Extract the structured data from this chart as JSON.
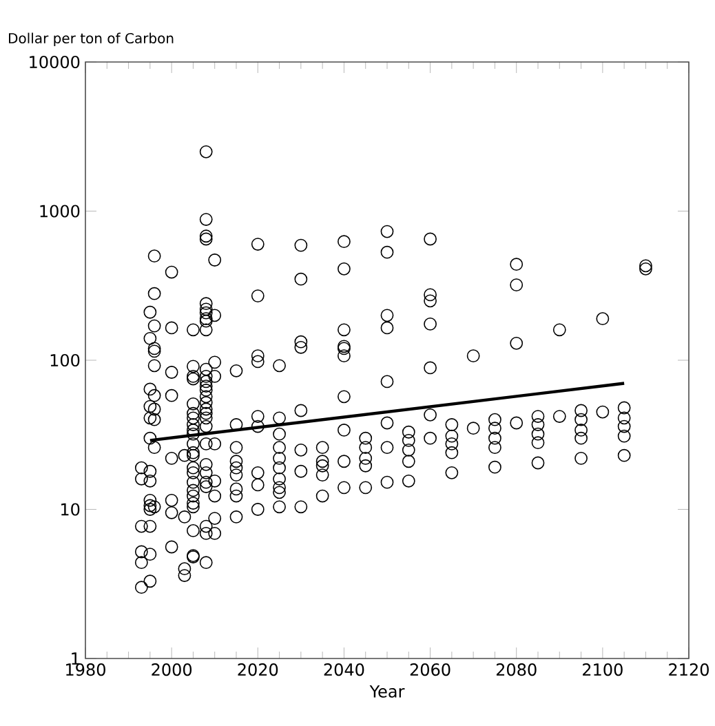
{
  "chart_data": {
    "type": "scatter",
    "xlabel": "Year",
    "ylabel": "Dollar per ton of Carbon",
    "log": "y",
    "xlim": [
      1980,
      2120
    ],
    "ylim": [
      1,
      10000
    ],
    "xticks": [
      1980,
      2000,
      2020,
      2040,
      2060,
      2080,
      2100,
      2120
    ],
    "yticks": [
      1,
      10,
      100,
      1000,
      10000
    ],
    "series": [
      {
        "color": "#000000",
        "marker": "circle",
        "x": [
          1993,
          1993,
          1993,
          1993,
          1993,
          1993,
          1995,
          1995,
          1995,
          1995,
          1995,
          1995,
          1995,
          1995,
          1995,
          1995,
          1995,
          1995,
          1995,
          1995,
          1996,
          1996,
          1996,
          1996,
          1996,
          1996,
          1996,
          1996,
          1996,
          1996,
          1996,
          2000,
          2000,
          2000,
          2000,
          2000,
          2000,
          2000,
          2000,
          2003,
          2003,
          2003,
          2003,
          2005,
          2005,
          2005,
          2005,
          2005,
          2005,
          2005,
          2005,
          2005,
          2005,
          2005,
          2005,
          2005,
          2005,
          2005,
          2005,
          2005,
          2005,
          2005,
          2005,
          2005,
          2005,
          2005,
          2008,
          2008,
          2008,
          2008,
          2008,
          2008,
          2008,
          2008,
          2008,
          2008,
          2008,
          2008,
          2008,
          2008,
          2008,
          2008,
          2008,
          2008,
          2008,
          2008,
          2008,
          2008,
          2008,
          2008,
          2008,
          2008,
          2008,
          2008,
          2008,
          2010,
          2010,
          2010,
          2010,
          2010,
          2010,
          2010,
          2010,
          2010,
          2015,
          2015,
          2015,
          2015,
          2015,
          2015,
          2015,
          2015,
          2015,
          2020,
          2020,
          2020,
          2020,
          2020,
          2020,
          2020,
          2020,
          2020,
          2025,
          2025,
          2025,
          2025,
          2025,
          2025,
          2025,
          2025,
          2025,
          2025,
          2030,
          2030,
          2030,
          2030,
          2030,
          2030,
          2030,
          2030,
          2035,
          2035,
          2035,
          2035,
          2035,
          2040,
          2040,
          2040,
          2040,
          2040,
          2040,
          2040,
          2040,
          2040,
          2040,
          2045,
          2045,
          2045,
          2045,
          2045,
          2050,
          2050,
          2050,
          2050,
          2050,
          2050,
          2050,
          2050,
          2055,
          2055,
          2055,
          2055,
          2055,
          2060,
          2060,
          2060,
          2060,
          2060,
          2060,
          2060,
          2065,
          2065,
          2065,
          2065,
          2065,
          2070,
          2070,
          2075,
          2075,
          2075,
          2075,
          2075,
          2080,
          2080,
          2080,
          2080,
          2085,
          2085,
          2085,
          2085,
          2085,
          2090,
          2090,
          2095,
          2095,
          2095,
          2095,
          2095,
          2100,
          2100,
          2105,
          2105,
          2105,
          2105,
          2105,
          2110,
          2110
        ],
        "values": [
          19,
          16,
          7.7,
          5.2,
          4.4,
          3.0,
          210,
          140,
          64,
          49,
          41,
          30,
          18,
          15.5,
          11.5,
          10.6,
          10,
          7.7,
          5.0,
          3.3,
          500,
          280,
          170,
          120,
          115,
          92,
          58,
          47,
          40,
          26,
          10.4,
          390,
          165,
          83,
          58,
          22,
          11.5,
          9.5,
          5.6,
          23,
          8.9,
          4.0,
          3.6,
          160,
          91,
          78,
          75,
          51,
          44,
          41,
          37,
          34,
          32,
          27.5,
          24,
          23,
          19,
          17.6,
          15.2,
          13.4,
          12.3,
          11,
          10.4,
          7.2,
          4.9,
          4.8,
          2500,
          880,
          680,
          650,
          240,
          220,
          208,
          190,
          183,
          160,
          87,
          78,
          72,
          67,
          63,
          57,
          52,
          47,
          44,
          41,
          36,
          27.5,
          20,
          17.6,
          15.2,
          14.2,
          7.7,
          6.9,
          4.4,
          470,
          200,
          97,
          78,
          27.5,
          15.5,
          12.3,
          8.7,
          6.9,
          85,
          37,
          26,
          21,
          19,
          17,
          13.7,
          12.3,
          8.9,
          600,
          270,
          107,
          98,
          42,
          36,
          17.6,
          14.6,
          10,
          92,
          41,
          32,
          26,
          22,
          19,
          16,
          14,
          13,
          10.4,
          590,
          350,
          133,
          122,
          46,
          25,
          18,
          10.4,
          26,
          21,
          19.6,
          17,
          12.3,
          625,
          410,
          160,
          124,
          120,
          107,
          57,
          34,
          21,
          14,
          30,
          26,
          22,
          19.6,
          14,
          730,
          530,
          200,
          165,
          72,
          38,
          26,
          15.2,
          33,
          29,
          25,
          21,
          15.5,
          650,
          275,
          250,
          175,
          89,
          43,
          30,
          37,
          31,
          27.5,
          24,
          17.6,
          107,
          35,
          40,
          35,
          30,
          26,
          19.2,
          440,
          320,
          130,
          38,
          42,
          37,
          32,
          28,
          20.5,
          160,
          42,
          46,
          40,
          34,
          30,
          22,
          190,
          45,
          48,
          41,
          36,
          31,
          23,
          430,
          410
        ]
      },
      {
        "type": "line",
        "color": "#000000",
        "x": [
          1995,
          2105
        ],
        "values": [
          29,
          70
        ]
      }
    ]
  }
}
